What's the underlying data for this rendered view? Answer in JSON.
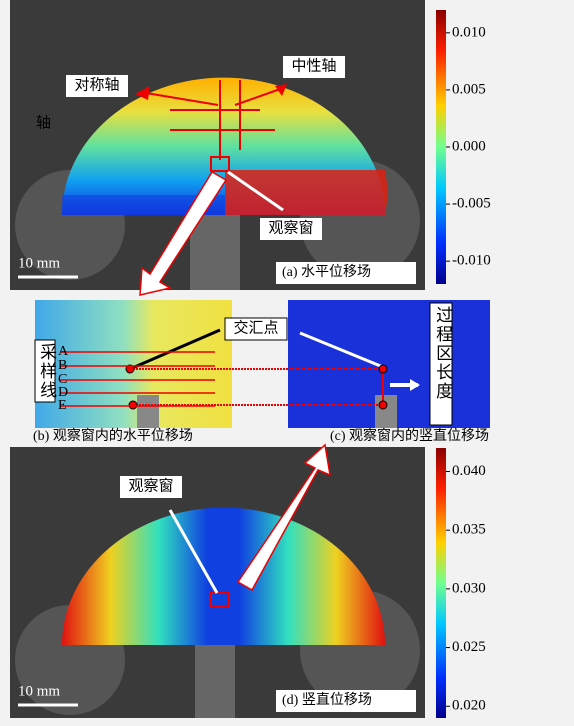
{
  "panel_a": {
    "caption": "(a) 水平位移场",
    "scale_bar": "10 mm",
    "labels": {
      "symmetry_axis": "对称轴",
      "neutral_axis": "中性轴",
      "axis_fragment": "轴",
      "window": "观察窗"
    },
    "colorbar": {
      "lim": [
        -0.012,
        0.012
      ],
      "ticks": [
        {
          "value": 0.01,
          "label": "0.010"
        },
        0.005,
        {
          "value": 0,
          "label": "0.000"
        },
        -0.005,
        {
          "value": -0.01,
          "label": "-0.010"
        }
      ]
    }
  },
  "panel_b": {
    "caption": "(b) 观察窗内的水平位移场",
    "intersection": "交汇点",
    "sampling_lines": "采样线",
    "line_labels": [
      "A",
      "B",
      "C",
      "D",
      "E"
    ]
  },
  "panel_c": {
    "caption": "(c) 观察窗内的竖直位移场",
    "process_zone_length": "过程区长度"
  },
  "panel_d": {
    "caption": "(d) 竖直位移场",
    "scale_bar": "10 mm",
    "labels": {
      "window": "观察窗"
    },
    "colorbar": {
      "lim": [
        0.019,
        0.042
      ],
      "ticks": [
        {
          "value": 0.04,
          "label": "0.040"
        },
        0.035,
        {
          "value": 0.03,
          "label": "0.030"
        },
        0.025,
        {
          "value": 0.02,
          "label": "0.020"
        }
      ]
    }
  }
}
